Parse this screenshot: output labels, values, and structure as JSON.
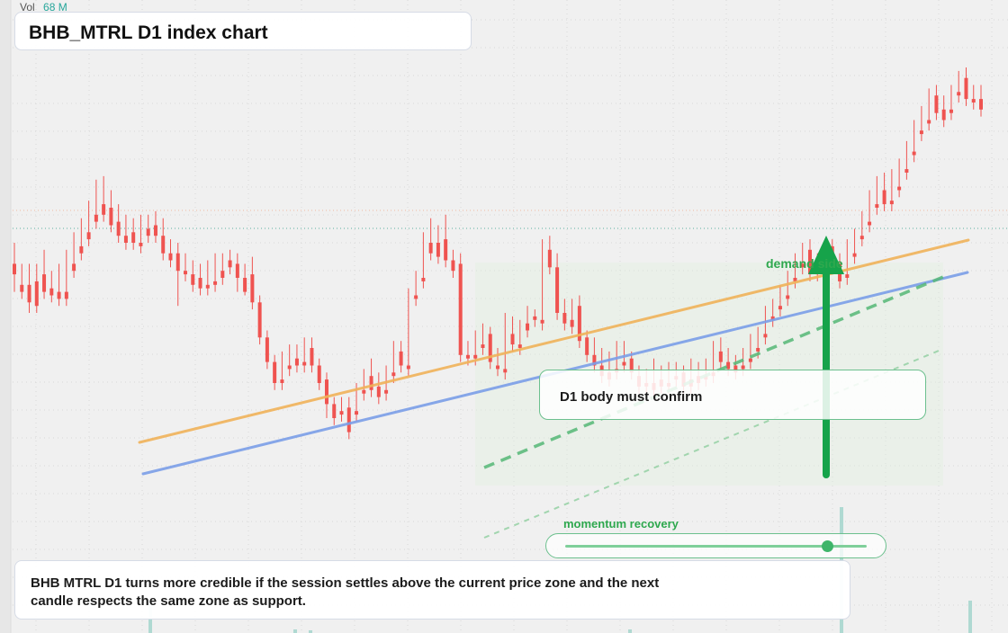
{
  "header": {
    "vol_label": "Vol",
    "vol_value": "68 M",
    "title": "BHB_MTRL D1 index chart"
  },
  "annotations": {
    "confirm_text": "D1 body must confirm",
    "demand_text": "demand side",
    "momentum_text": "momentum recovery",
    "momentum_level": 0.87,
    "note_text": "BHB MTRL D1 turns more credible if the session settles above the current price zone and the next candle respects the same zone as support."
  },
  "colors": {
    "up": "#26a69a",
    "down": "#ef5350",
    "ma_fast": "#f0b35a",
    "ma_slow": "#7b9ee8",
    "signal": "#16a34a"
  },
  "chart_data": {
    "type": "candlestick",
    "symbol": "BHB_MTRL",
    "timeframe": "D1",
    "title": "BHB_MTRL D1 index chart",
    "price_range": [
      0,
      100
    ],
    "candles": [
      [
        62.0,
        63.5,
        60.5,
        58.0,
        65.0
      ],
      [
        59.0,
        61.5,
        58.0,
        57.0,
        62.0
      ],
      [
        59.0,
        61.0,
        56.5,
        55.0,
        62.0
      ],
      [
        59.5,
        61.5,
        56.0,
        55.0,
        62.0
      ],
      [
        60.5,
        62.0,
        58.0,
        57.0,
        64.0
      ],
      [
        58.5,
        60.5,
        57.5,
        56.5,
        61.0
      ],
      [
        58.0,
        60.5,
        57.0,
        56.0,
        62.0
      ],
      [
        58.0,
        62.0,
        57.0,
        56.0,
        64.0
      ],
      [
        62.0,
        64.5,
        61.0,
        60.0,
        66.5
      ],
      [
        64.5,
        66.5,
        63.5,
        62.5,
        68.5
      ],
      [
        66.5,
        69.0,
        65.5,
        64.5,
        71.0
      ],
      [
        69.0,
        72.5,
        68.0,
        67.0,
        74.0
      ],
      [
        70.5,
        72.5,
        69.0,
        68.0,
        74.5
      ],
      [
        70.0,
        71.5,
        67.5,
        66.5,
        72.5
      ],
      [
        68.0,
        69.5,
        66.0,
        65.0,
        70.5
      ],
      [
        66.0,
        67.5,
        65.0,
        64.0,
        69.0
      ],
      [
        66.5,
        67.0,
        65.0,
        64.0,
        68.5
      ],
      [
        65.0,
        67.5,
        64.5,
        63.5,
        69.0
      ],
      [
        67.0,
        68.5,
        66.0,
        65.0,
        69.0
      ],
      [
        67.5,
        68.5,
        66.0,
        65.0,
        69.5
      ],
      [
        66.0,
        67.5,
        63.5,
        62.5,
        68.5
      ],
      [
        63.5,
        64.5,
        62.5,
        61.5,
        65.5
      ],
      [
        63.5,
        64.0,
        61.0,
        56.0,
        65.0
      ],
      [
        61.0,
        62.5,
        60.5,
        59.5,
        63.5
      ],
      [
        60.5,
        62.0,
        59.0,
        58.0,
        62.5
      ],
      [
        60.0,
        61.5,
        58.5,
        57.5,
        62.0
      ],
      [
        59.0,
        61.5,
        58.5,
        57.5,
        62.5
      ],
      [
        59.5,
        62.5,
        59.0,
        58.0,
        63.5
      ],
      [
        61.0,
        63.0,
        60.0,
        59.0,
        63.5
      ],
      [
        62.5,
        63.0,
        61.5,
        60.5,
        64.0
      ],
      [
        62.0,
        62.5,
        60.0,
        58.0,
        63.5
      ],
      [
        60.0,
        61.0,
        58.0,
        57.5,
        62.0
      ],
      [
        60.5,
        61.0,
        56.5,
        55.5,
        63.0
      ],
      [
        56.5,
        57.0,
        51.5,
        50.5,
        57.5
      ],
      [
        51.5,
        52.0,
        48.0,
        47.0,
        52.5
      ],
      [
        48.0,
        48.5,
        45.0,
        44.0,
        49.0
      ],
      [
        45.5,
        48.5,
        45.0,
        44.0,
        49.5
      ],
      [
        47.5,
        49.5,
        47.0,
        46.0,
        50.5
      ],
      [
        48.5,
        49.5,
        47.5,
        46.5,
        50.5
      ],
      [
        48.0,
        50.5,
        47.5,
        46.5,
        51.5
      ],
      [
        50.0,
        50.5,
        47.5,
        46.5,
        51.5
      ],
      [
        47.5,
        48.0,
        45.0,
        44.0,
        48.5
      ],
      [
        45.5,
        46.0,
        42.0,
        40.0,
        46.5
      ],
      [
        42.0,
        42.5,
        40.0,
        39.0,
        43.0
      ],
      [
        41.0,
        42.5,
        40.5,
        39.5,
        43.0
      ],
      [
        41.5,
        42.0,
        38.0,
        37.0,
        43.0
      ],
      [
        41.0,
        44.0,
        40.5,
        39.5,
        45.0
      ],
      [
        44.0,
        46.5,
        43.5,
        42.5,
        47.0
      ],
      [
        46.0,
        46.5,
        44.0,
        43.0,
        48.5
      ],
      [
        44.5,
        45.5,
        43.0,
        42.0,
        46.5
      ],
      [
        44.0,
        46.5,
        43.5,
        42.5,
        47.5
      ],
      [
        46.5,
        50.0,
        46.0,
        45.0,
        51.0
      ],
      [
        49.5,
        50.5,
        47.5,
        46.5,
        51.0
      ],
      [
        47.5,
        57.5,
        47.0,
        46.0,
        58.5
      ],
      [
        57.5,
        60.0,
        57.0,
        56.0,
        61.0
      ],
      [
        60.0,
        65.5,
        59.5,
        58.5,
        66.5
      ],
      [
        65.0,
        66.0,
        63.5,
        62.5,
        68.5
      ],
      [
        65.0,
        66.0,
        63.0,
        62.0,
        67.5
      ],
      [
        65.5,
        66.5,
        62.5,
        61.5,
        69.0
      ],
      [
        62.5,
        63.0,
        61.0,
        60.0,
        64.0
      ],
      [
        62.0,
        63.0,
        49.0,
        48.0,
        63.5
      ],
      [
        49.0,
        50.5,
        48.5,
        47.5,
        51.0
      ],
      [
        49.0,
        51.0,
        48.5,
        47.5,
        52.5
      ],
      [
        50.5,
        52.5,
        50.0,
        49.0,
        53.5
      ],
      [
        52.0,
        52.5,
        48.0,
        47.0,
        53.0
      ],
      [
        47.5,
        48.0,
        47.0,
        46.0,
        50.0
      ],
      [
        47.0,
        52.0,
        46.5,
        45.5,
        55.0
      ],
      [
        52.0,
        52.5,
        50.5,
        49.5,
        54.5
      ],
      [
        50.5,
        53.5,
        50.0,
        49.0,
        54.0
      ],
      [
        53.5,
        55.0,
        52.5,
        51.5,
        56.0
      ],
      [
        54.5,
        55.0,
        54.0,
        53.0,
        55.5
      ],
      [
        54.0,
        64.5,
        53.5,
        52.5,
        65.5
      ],
      [
        64.0,
        65.0,
        61.5,
        60.5,
        66.0
      ],
      [
        61.5,
        62.0,
        55.0,
        54.0,
        63.5
      ],
      [
        55.0,
        56.0,
        53.5,
        52.5,
        57.0
      ],
      [
        54.0,
        56.5,
        53.0,
        52.0,
        57.0
      ],
      [
        56.0,
        56.5,
        51.0,
        50.0,
        57.5
      ],
      [
        51.5,
        52.0,
        49.0,
        48.0,
        52.5
      ],
      [
        49.0,
        51.0,
        47.5,
        46.5,
        51.5
      ],
      [
        47.5,
        48.5,
        46.0,
        45.0,
        50.0
      ],
      [
        46.5,
        48.0,
        45.5,
        44.5,
        49.5
      ],
      [
        47.0,
        50.0,
        46.5,
        45.5,
        51.0
      ],
      [
        48.0,
        50.0,
        47.5,
        46.5,
        51.0
      ],
      [
        48.5,
        49.0,
        46.5,
        45.5,
        49.5
      ],
      [
        46.0,
        47.0,
        44.5,
        43.5,
        47.5
      ],
      [
        45.0,
        46.5,
        44.5,
        43.5,
        47.0
      ],
      [
        45.0,
        47.5,
        44.0,
        43.0,
        48.5
      ],
      [
        45.5,
        46.5,
        44.5,
        43.5,
        47.5
      ],
      [
        45.0,
        47.0,
        44.5,
        43.5,
        48.0
      ],
      [
        46.0,
        47.5,
        45.5,
        44.5,
        48.0
      ],
      [
        46.5,
        47.0,
        44.5,
        43.5,
        47.5
      ],
      [
        45.5,
        46.5,
        44.5,
        43.5,
        48.5
      ],
      [
        46.0,
        47.0,
        45.0,
        44.0,
        48.0
      ],
      [
        46.0,
        47.5,
        45.5,
        44.5,
        48.5
      ],
      [
        46.5,
        50.0,
        46.0,
        45.0,
        51.0
      ],
      [
        49.5,
        50.5,
        48.0,
        47.0,
        51.5
      ],
      [
        48.0,
        49.0,
        47.0,
        46.0,
        50.0
      ],
      [
        47.5,
        48.5,
        46.5,
        45.5,
        49.0
      ],
      [
        47.5,
        49.5,
        47.0,
        46.0,
        50.0
      ],
      [
        48.5,
        51.0,
        48.0,
        47.0,
        52.0
      ],
      [
        50.0,
        52.5,
        49.5,
        48.5,
        53.0
      ],
      [
        52.0,
        55.0,
        51.5,
        50.5,
        56.0
      ],
      [
        54.5,
        56.5,
        54.0,
        53.0,
        57.0
      ],
      [
        56.0,
        58.0,
        55.5,
        54.5,
        59.0
      ],
      [
        57.5,
        60.5,
        57.0,
        56.0,
        61.0
      ],
      [
        60.0,
        62.5,
        59.5,
        58.5,
        63.5
      ],
      [
        62.0,
        64.5,
        61.5,
        60.5,
        65.0
      ],
      [
        64.0,
        64.5,
        60.5,
        59.5,
        65.5
      ],
      [
        61.0,
        62.5,
        60.5,
        59.5,
        63.5
      ],
      [
        62.0,
        64.5,
        61.5,
        60.5,
        65.5
      ],
      [
        64.5,
        64.5,
        62.5,
        61.5,
        65.5
      ],
      [
        62.0,
        62.5,
        59.5,
        58.5,
        63.5
      ],
      [
        60.5,
        64.0,
        60.0,
        59.0,
        65.5
      ],
      [
        63.5,
        66.0,
        63.0,
        62.0,
        67.0
      ],
      [
        66.0,
        68.5,
        65.5,
        64.5,
        69.5
      ],
      [
        68.0,
        70.5,
        67.5,
        66.5,
        72.5
      ],
      [
        70.5,
        73.0,
        70.0,
        69.0,
        74.5
      ],
      [
        72.5,
        73.5,
        70.5,
        69.5,
        75.0
      ],
      [
        71.0,
        73.5,
        70.5,
        69.5,
        75.5
      ],
      [
        73.0,
        76.0,
        72.5,
        71.5,
        77.0
      ],
      [
        75.5,
        78.5,
        75.0,
        74.0,
        79.5
      ],
      [
        78.0,
        81.5,
        77.5,
        76.5,
        82.5
      ],
      [
        81.0,
        83.0,
        80.5,
        79.5,
        84.5
      ],
      [
        82.5,
        86.0,
        82.0,
        81.0,
        87.0
      ],
      [
        86.0,
        86.5,
        83.5,
        82.5,
        87.5
      ],
      [
        84.0,
        85.0,
        82.5,
        81.5,
        86.0
      ],
      [
        84.0,
        86.5,
        83.5,
        82.5,
        87.5
      ],
      [
        86.5,
        88.5,
        86.0,
        85.0,
        89.5
      ],
      [
        88.5,
        89.0,
        85.5,
        84.5,
        90.0
      ],
      [
        85.5,
        86.5,
        85.0,
        84.0,
        87.5
      ],
      [
        85.5,
        86.5,
        84.0,
        83.0,
        87.5
      ]
    ],
    "moving_averages": [
      {
        "color": "#f0b35a",
        "start": 64.0,
        "end": 86.0
      },
      {
        "color": "#7b9ee8",
        "start": 59.0,
        "end": 80.0
      }
    ],
    "signal": "buy",
    "volume": "68 M"
  }
}
